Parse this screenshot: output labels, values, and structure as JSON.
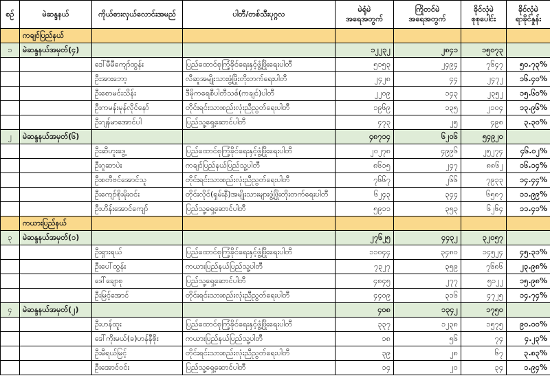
{
  "colors": {
    "state_row_bg": "#fad98c",
    "summary_row_bg": "#dfecd7",
    "border": "#000000",
    "text": "#1a1a1a"
  },
  "table": {
    "columns": [
      {
        "key": "no",
        "label_lines": [
          "စဉ်"
        ]
      },
      {
        "key": "constituency",
        "label_lines": [
          "မဲဆန္ဒနယ်"
        ]
      },
      {
        "key": "candidate",
        "label_lines": [
          "ကိုယ်စားလှယ်လောင်းအမည်"
        ]
      },
      {
        "key": "party",
        "label_lines": [
          "ပါတီ/တစ်သီးပုဂ္ဂလ"
        ]
      },
      {
        "key": "polling",
        "label_lines": [
          "မဲရုံမဲ",
          "အရေအတွက်"
        ]
      },
      {
        "key": "advance",
        "label_lines": [
          "ကြိုတင်မဲ",
          "အရေအတွက်"
        ]
      },
      {
        "key": "valid_total",
        "label_lines": [
          "ခိုင်လုံမဲ",
          "စုစုပေါင်း"
        ]
      },
      {
        "key": "valid_pct",
        "label_lines": [
          "ခိုင်လုံမဲ",
          "ရာခိုင်နှုန်း"
        ]
      }
    ],
    "rows": [
      {
        "type": "state",
        "constituency": "ကချင်ပြည်နယ်"
      },
      {
        "type": "summary",
        "no": "၁",
        "constituency": "မဲဆန္ဒနယ်အမှတ်(၄)",
        "polling": "၁၂၂၃၂",
        "advance": "၂၈၄၁",
        "valid_total": "၁၅၀၇၃",
        "valid_pct": ""
      },
      {
        "type": "candidate",
        "candidate": "ဒေါ်မီမီကျော်ထွန်း",
        "party": "ပြည်ထောင်စုကြံ့ခိုင်ရေးနှင့်ဖွံ့ဖြိုးရေးပါတီ",
        "polling": "၅၁၅၃",
        "advance": "၂၄၉၄",
        "valid_total": "၇၆၄၇",
        "valid_pct": "၅၀.၇၃%"
      },
      {
        "type": "candidate",
        "candidate": "ဦးအားဘော့",
        "party": "လီဆူအမျိုးသားဖွံ့ဖြိုးတိုးတက်ရေးပါတီ",
        "polling": "၂၄၂၈",
        "advance": "၄၄",
        "valid_total": "၂၄၇၂",
        "valid_pct": "၁၆.၄၀%"
      },
      {
        "type": "candidate",
        "candidate": "ဦးစောမင်းသိန်း",
        "party": "ဒီမိုကရေစီပါတီသစ်(ကချင်)ပါတီ",
        "polling": "၂၂၀၉",
        "advance": "၁၄၃",
        "valid_total": "၂၃၅၂",
        "valid_pct": "၁၅.၆၀%"
      },
      {
        "type": "candidate",
        "candidate": "ဦးကမန်းမုန်လိုင်နော်",
        "party": "တိုင်းရင်းသားစည်းလုံးညီညွတ်ရေးပါတီ",
        "polling": "၁၉၆၉",
        "advance": "၁၃၅",
        "valid_total": "၂၁၀၄",
        "valid_pct": "၁၃.၉၆%"
      },
      {
        "type": "candidate",
        "candidate": "ဦးဂျန်မာအောင်ပါ",
        "party": "ပြည်သူ့ရှေ့ဆောင်ပါတီ",
        "polling": "၄၇၃",
        "advance": "၂၅",
        "valid_total": "၄၉၈",
        "valid_pct": "၃.၃၀%"
      },
      {
        "type": "summary",
        "no": "၂",
        "constituency": "မဲဆန္ဒနယ်အမှတ်(၆)",
        "polling": "၄၈၇၁၄",
        "advance": "၆၂၀၆",
        "valid_total": "၅၄၉၂၀",
        "valid_pct": ""
      },
      {
        "type": "candidate",
        "candidate": "ဦးဆီဟူးဒွေ့",
        "party": "ပြည်ထောင်စုကြံ့ခိုင်ရေးနှင့်ဖွံ့ဖြိုးရေးပါတီ",
        "polling": "၂၀၂၇၈",
        "advance": "၄၉၉၆",
        "valid_total": "၂၅၂၇၄",
        "valid_pct": "၄၆.၀၂%"
      },
      {
        "type": "candidate",
        "candidate": "ဦးဂူဆာပဲး",
        "party": "ကချင်ပြည်နယ်ပြည်သူ့ပါတီ",
        "polling": "၈၆၁၅",
        "advance": "၂၄၇",
        "valid_total": "၈၈၆၂",
        "valid_pct": "၁၆.၁၄%"
      },
      {
        "type": "candidate",
        "candidate": "ဦးစတီဗင်အောင်သူ",
        "party": "တိုင်းရင်းသားစည်းလုံးညီညွတ်ရေးပါတီ",
        "polling": "၇၆၆၇",
        "advance": "၂၆၆",
        "valid_total": "၇၉၃၃",
        "valid_pct": "၁၄.၄၄%"
      },
      {
        "type": "candidate",
        "candidate": "ဦးကျော်စိုးမိုးဝင်း",
        "party": "တိုင်းလိုင်(ရှမ်းနီ)အမျိုးသားများဖွံ့ဖြိုးတိုးတက်ရေးပါတီ",
        "polling": "၆၂၄၃",
        "advance": "၃၄၄",
        "valid_total": "၆၅၈၇",
        "valid_pct": "၁၁.၉၉%"
      },
      {
        "type": "candidate",
        "candidate": "ဦးဟိန်းအောင်ကျော်",
        "party": "ပြည်သူ့ရှေ့ဆောင်ပါတီ",
        "polling": "၅၉၁၁",
        "advance": "၃၅၃",
        "valid_total": "၆၂၆၄",
        "valid_pct": "၁၁.၄၁%"
      },
      {
        "type": "state",
        "constituency": "ကယားပြည်နယ်"
      },
      {
        "type": "summary",
        "no": "၃",
        "constituency": "မဲဆန္ဒနယ်အမှတ်(၁)",
        "polling": "၂၇၆၂၅",
        "advance": "၄၄၃၂",
        "valid_total": "၃၂၀၅၇",
        "valid_pct": ""
      },
      {
        "type": "candidate",
        "candidate": "ဦးရှားရယ်",
        "party": "ပြည်ထောင်စုကြံ့ခိုင်ရေးနှင့်ဖွံ့ဖြိုးရေးပါတီ",
        "polling": "၁၁၀၄၄",
        "advance": "၃၄၈၀",
        "valid_total": "၁၄၅၂၄",
        "valid_pct": "၄၅.၃၁%"
      },
      {
        "type": "candidate",
        "candidate": "ဦးပေါ်ထွန်း",
        "party": "ကယားပြည်နယ်ပြည်သူ့ပါတီ",
        "polling": "၇၃၂၇",
        "advance": "၃၅၉",
        "valid_total": "၇၆၈၆",
        "valid_pct": "၂၃.၉၈%"
      },
      {
        "type": "candidate",
        "candidate": "ဒေါ်ချောစု",
        "party": "ပြည်သူ့ရှေ့ဆောင်ပါတီ",
        "polling": "၄၈၄၅",
        "advance": "၂၇၇",
        "valid_total": "၅၁၂၂",
        "valid_pct": "၁၅.၉၈%"
      },
      {
        "type": "candidate",
        "candidate": "ဦးမြင့်အောင်",
        "party": "တိုင်းရင်းသားစည်းလုံးညီညွတ်ရေးပါတီ",
        "polling": "၄၄၀၉",
        "advance": "၃၁၆",
        "valid_total": "၄၇၂၅",
        "valid_pct": "၁၄.၇၄%"
      },
      {
        "type": "summary",
        "no": "၄",
        "constituency": "မဲဆန္ဒနယ်အမှတ်(၂)",
        "polling": "၄၀၈",
        "advance": "၁၃၄၂",
        "valid_total": "၁၇၅၀",
        "valid_pct": ""
      },
      {
        "type": "candidate",
        "candidate": "ဦးဟန်ထူး",
        "party": "ပြည်ထောင်စုကြံ့ခိုင်ရေးနှင့်ဖွံ့ဖြိုးရေးပါတီ",
        "polling": "၃၃၇",
        "advance": "၁၂၃၈",
        "valid_total": "၁၅၇၅",
        "valid_pct": "၉၀.၀၀%"
      },
      {
        "type": "candidate",
        "candidate": "ဒေါ်ကိုးမယ်(ခ)ဟန်နီစိုး",
        "party": "ကယားပြည်နယ်ပြည်သူ့ပါတီ",
        "polling": "၁၈",
        "advance": "၅၆",
        "valid_total": "၇၄",
        "valid_pct": "၄.၂၃%"
      },
      {
        "type": "candidate",
        "candidate": "ဦးမီရယ်မြင့်",
        "party": "တိုင်းရင်းသားစည်းလုံးညီညွတ်ရေးပါတီ",
        "polling": "၃၉",
        "advance": "၂၈",
        "valid_total": "၆၇",
        "valid_pct": "၃.၈၃%"
      },
      {
        "type": "candidate",
        "candidate": "ဦးအောင်ဝင်း",
        "party": "ပြည်သူ့ရှေ့ဆောင်ပါတီ",
        "polling": "၁၄",
        "advance": "၂၀",
        "valid_total": "၃၄",
        "valid_pct": "၁.၉၄%"
      }
    ]
  }
}
